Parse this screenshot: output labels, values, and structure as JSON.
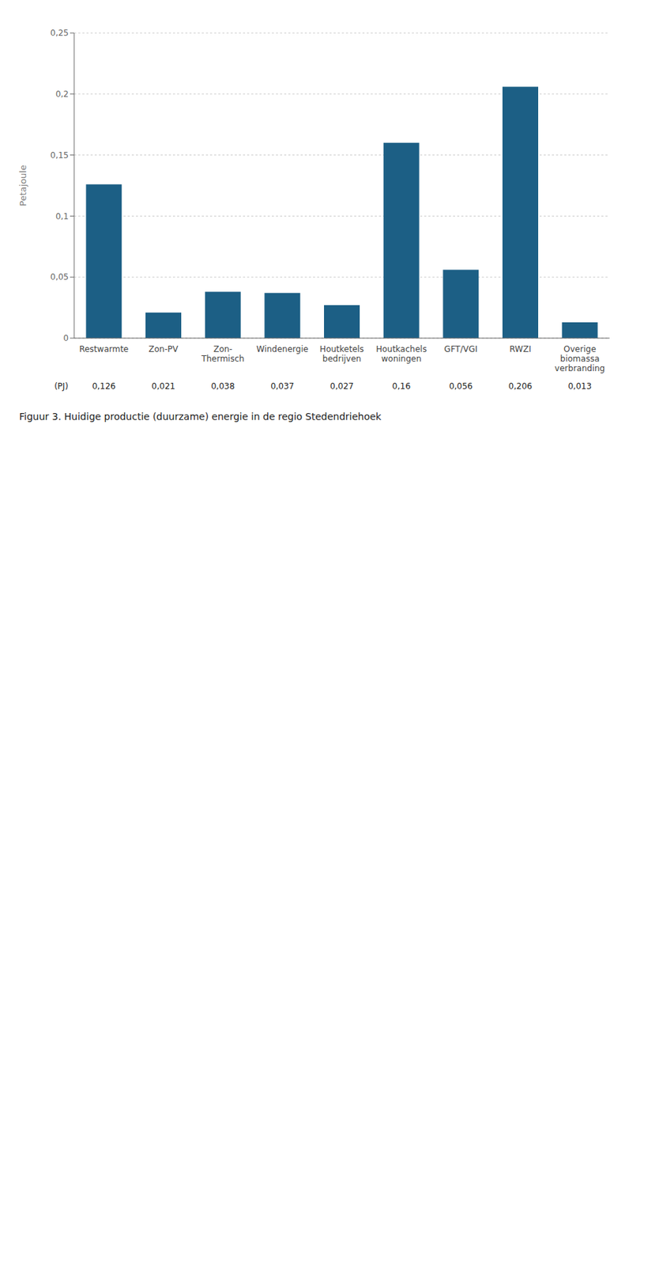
{
  "chart_data": {
    "type": "bar",
    "title": "Figuur 3. Huidige productie (duurzame) energie in de regio Stedendriehoek",
    "categories": [
      "Restwarmte",
      "Zon-PV",
      "Zon-\nThermisch",
      "Windenergie",
      "Houtketels\nbedrijven",
      "Houtkachels\nwoningen",
      "GFT/VGI",
      "RWZI",
      "Overige\nbiomassa\nverbranding"
    ],
    "values": [
      0.126,
      0.021,
      0.038,
      0.037,
      0.027,
      0.16,
      0.056,
      0.206,
      0.013
    ],
    "value_labels": [
      "0,126",
      "0,021",
      "0,038",
      "0,037",
      "0,027",
      "0,16",
      "0,056",
      "0,206",
      "0,013"
    ],
    "data_labels": true,
    "annotations": [
      "(PJ)"
    ],
    "ylabel": "Petajoule",
    "color": "#1C5F85",
    "ylim": [
      0,
      0.25
    ],
    "yticks": [
      0,
      {
        "value": 0.05,
        "label": "0,05"
      },
      {
        "value": 0.1,
        "label": "0,1"
      },
      {
        "value": 0.15,
        "label": "0,15"
      },
      {
        "value": 0.2,
        "label": "0,2"
      },
      {
        "value": 0.25,
        "label": "0,25"
      }
    ],
    "grid": true
  }
}
